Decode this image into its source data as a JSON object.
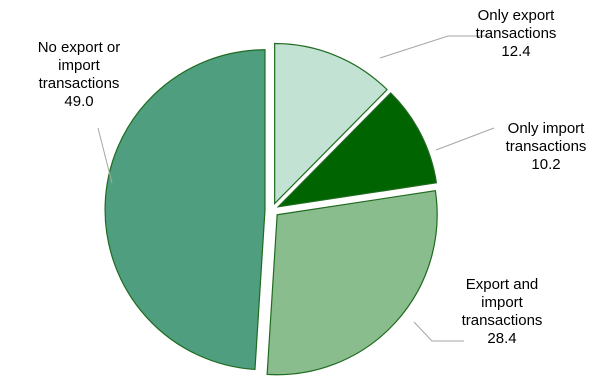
{
  "chart_data": {
    "type": "pie",
    "title": "",
    "slices": [
      {
        "label_lines": [
          "Only export",
          "transactions"
        ],
        "value_text": "12.4",
        "value": 12.4,
        "color": "#c2e3d4",
        "exploded": true
      },
      {
        "label_lines": [
          "Only import",
          "transactions"
        ],
        "value_text": "10.2",
        "value": 10.2,
        "color": "#006400",
        "exploded": true
      },
      {
        "label_lines": [
          "Export and",
          "import",
          "transactions"
        ],
        "value_text": "28.4",
        "value": 28.4,
        "color": "#8abd8d",
        "exploded": true
      },
      {
        "label_lines": [
          "No export or",
          "import",
          "transactions"
        ],
        "value_text": "49.0",
        "value": 49.0,
        "color": "#4f9e80",
        "exploded": true
      }
    ],
    "start_angle_deg": 0,
    "direction": "clockwise",
    "slice_border_color": "#1f6b1f",
    "leader_line_color": "#a6a6a6",
    "legend": "none"
  }
}
